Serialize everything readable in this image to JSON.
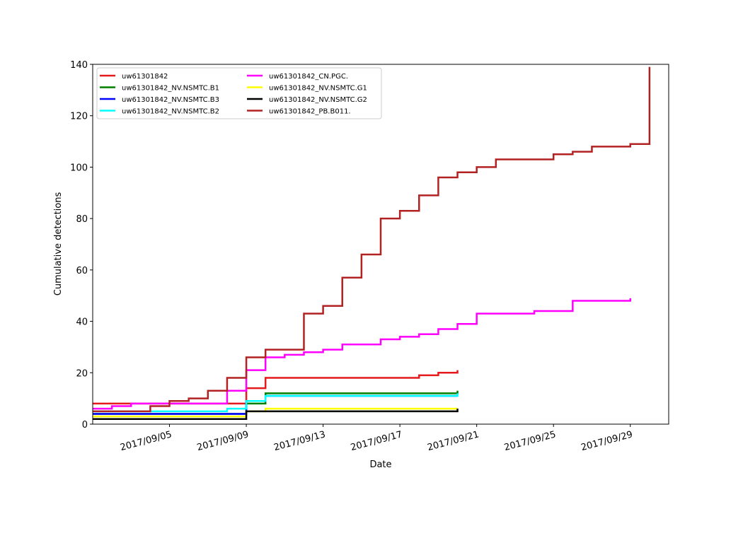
{
  "chart_data": {
    "type": "step",
    "xlabel": "Date",
    "ylabel": "Cumulative detections",
    "xlim": [
      "2017/09/01",
      "2017/10/01"
    ],
    "xticks": [
      "2017/09/05",
      "2017/09/09",
      "2017/09/13",
      "2017/09/17",
      "2017/09/21",
      "2017/09/25",
      "2017/09/29"
    ],
    "ylim": [
      0,
      140
    ],
    "yticks": [
      0,
      20,
      40,
      60,
      80,
      100,
      120,
      140
    ],
    "legend": "upper left",
    "series": [
      {
        "name": "uw61301842",
        "color": "#e41a1c",
        "x": [
          "2017/09/01",
          "2017/09/09",
          "2017/09/10",
          "2017/09/18",
          "2017/09/19",
          "2017/09/20"
        ],
        "values": [
          8,
          14,
          18,
          19,
          20,
          21
        ]
      },
      {
        "name": "uw61301842_NV.NSMTC.B1",
        "color": "#008000",
        "x": [
          "2017/09/01",
          "2017/09/09",
          "2017/09/10",
          "2017/09/20"
        ],
        "values": [
          4,
          8,
          12,
          13
        ]
      },
      {
        "name": "uw61301842_NV.NSMTC.B3",
        "color": "#0000ff",
        "x": [
          "2017/09/01",
          "2017/09/09",
          "2017/09/10",
          "2017/09/20"
        ],
        "values": [
          4,
          9,
          11,
          11
        ]
      },
      {
        "name": "uw61301842_NV.NSMTC.B2",
        "color": "#00ffff",
        "x": [
          "2017/09/01",
          "2017/09/08",
          "2017/09/09",
          "2017/09/10",
          "2017/09/20"
        ],
        "values": [
          5,
          6,
          9,
          11,
          12
        ]
      },
      {
        "name": "uw61301842_CN.PGC.",
        "color": "#ff00ff",
        "x": [
          "2017/09/01",
          "2017/09/02",
          "2017/09/03",
          "2017/09/08",
          "2017/09/09",
          "2017/09/10",
          "2017/09/11",
          "2017/09/12",
          "2017/09/13",
          "2017/09/14",
          "2017/09/16",
          "2017/09/17",
          "2017/09/18",
          "2017/09/19",
          "2017/09/20",
          "2017/09/21",
          "2017/09/24",
          "2017/09/26",
          "2017/09/29"
        ],
        "values": [
          6,
          7,
          8,
          13,
          21,
          26,
          27,
          28,
          29,
          31,
          33,
          34,
          35,
          37,
          39,
          43,
          44,
          48,
          49
        ]
      },
      {
        "name": "uw61301842_NV.NSMTC.G1",
        "color": "#ffff00",
        "x": [
          "2017/09/01",
          "2017/09/09",
          "2017/09/10",
          "2017/09/20"
        ],
        "values": [
          3,
          5,
          6,
          6
        ]
      },
      {
        "name": "uw61301842_NV.NSMTC.G2",
        "color": "#000000",
        "x": [
          "2017/09/01",
          "2017/09/09",
          "2017/09/20"
        ],
        "values": [
          2,
          5,
          6
        ]
      },
      {
        "name": "uw61301842_PB.B011.",
        "color": "#b22222",
        "x": [
          "2017/09/01",
          "2017/09/04",
          "2017/09/05",
          "2017/09/06",
          "2017/09/07",
          "2017/09/08",
          "2017/09/09",
          "2017/09/10",
          "2017/09/12",
          "2017/09/13",
          "2017/09/14",
          "2017/09/15",
          "2017/09/16",
          "2017/09/17",
          "2017/09/18",
          "2017/09/19",
          "2017/09/20",
          "2017/09/21",
          "2017/09/22",
          "2017/09/25",
          "2017/09/26",
          "2017/09/27",
          "2017/09/29",
          "2017/09/30"
        ],
        "values": [
          5,
          7,
          9,
          10,
          13,
          18,
          26,
          29,
          43,
          46,
          57,
          66,
          80,
          83,
          89,
          96,
          98,
          100,
          103,
          105,
          106,
          108,
          109,
          139
        ]
      }
    ]
  }
}
